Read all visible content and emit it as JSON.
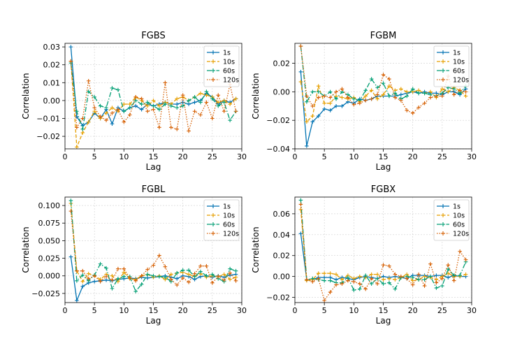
{
  "chart_data": [
    {
      "type": "line",
      "title": "FGBS",
      "xlabel": "Lag",
      "ylabel": "Correlation",
      "xlim": [
        0,
        30
      ],
      "ylim": [
        -0.027,
        0.032
      ],
      "xticks": [
        0,
        5,
        10,
        15,
        20,
        25,
        30
      ],
      "yticks": [
        -0.02,
        -0.01,
        0.0,
        0.01,
        0.02,
        0.03
      ],
      "ytick_labels": [
        "−0.02",
        "−0.01",
        "0.00",
        "0.01",
        "0.02",
        "0.03"
      ],
      "grid": true,
      "legend_position": "top-right",
      "x": [
        1,
        2,
        3,
        4,
        5,
        6,
        7,
        8,
        9,
        10,
        11,
        12,
        13,
        14,
        15,
        16,
        17,
        18,
        19,
        20,
        21,
        22,
        23,
        24,
        25,
        26,
        27,
        28,
        29
      ],
      "series": [
        {
          "name": "1s",
          "color": "#0072B2",
          "linestyle": "solid",
          "values": [
            0.03,
            -0.009,
            -0.014,
            -0.012,
            -0.007,
            -0.01,
            -0.005,
            -0.013,
            -0.004,
            -0.006,
            -0.004,
            -0.003,
            -0.005,
            -0.002,
            -0.003,
            -0.002,
            -0.001,
            -0.002,
            -0.002,
            -0.001,
            -0.002,
            -0.001,
            0.0,
            0.004,
            0.002,
            -0.002,
            0.0,
            -0.001,
            0.001
          ]
        },
        {
          "name": "10s",
          "color": "#E69F00",
          "linestyle": "dashed",
          "values": [
            0.022,
            -0.026,
            -0.018,
            -0.012,
            -0.006,
            -0.01,
            -0.007,
            -0.004,
            -0.006,
            -0.002,
            -0.002,
            0.002,
            0.0,
            -0.003,
            0.0,
            -0.003,
            -0.001,
            -0.002,
            0.001,
            0.002,
            0.0,
            0.002,
            0.004,
            0.003,
            0.002,
            -0.001,
            0.0,
            -0.002,
            0.001
          ]
        },
        {
          "name": "60s",
          "color": "#009E73",
          "linestyle": "dashdot",
          "values": [
            0.021,
            -0.006,
            -0.016,
            0.005,
            0.002,
            -0.003,
            -0.004,
            0.007,
            0.006,
            -0.006,
            -0.004,
            0.0,
            -0.002,
            -0.001,
            -0.003,
            -0.005,
            -0.002,
            -0.003,
            -0.004,
            -0.003,
            0.0,
            0.002,
            -0.001,
            0.005,
            0.001,
            -0.003,
            -0.001,
            -0.011,
            -0.006
          ]
        },
        {
          "name": "120s",
          "color": "#D55E00",
          "linestyle": "dotted",
          "values": [
            0.022,
            -0.015,
            -0.01,
            0.011,
            -0.004,
            -0.009,
            -0.011,
            -0.007,
            -0.005,
            -0.012,
            -0.008,
            0.002,
            0.001,
            -0.006,
            -0.005,
            -0.015,
            0.01,
            -0.015,
            -0.016,
            0.003,
            -0.017,
            -0.006,
            -0.008,
            -0.001,
            -0.01,
            0.003,
            -0.006,
            0.009,
            -0.006
          ]
        }
      ]
    },
    {
      "type": "line",
      "title": "FGBM",
      "xlabel": "Lag",
      "ylabel": "Correlation",
      "xlim": [
        0,
        30
      ],
      "ylim": [
        -0.04,
        0.034
      ],
      "xticks": [
        0,
        5,
        10,
        15,
        20,
        25,
        30
      ],
      "yticks": [
        -0.04,
        -0.02,
        0.0,
        0.02
      ],
      "ytick_labels": [
        "−0.04",
        "−0.02",
        "0.00",
        "0.02"
      ],
      "grid": true,
      "legend_position": "top-right",
      "x": [
        1,
        2,
        3,
        4,
        5,
        6,
        7,
        8,
        9,
        10,
        11,
        12,
        13,
        14,
        15,
        16,
        17,
        18,
        19,
        20,
        21,
        22,
        23,
        24,
        25,
        26,
        27,
        28,
        29
      ],
      "series": [
        {
          "name": "1s",
          "color": "#0072B2",
          "linestyle": "solid",
          "values": [
            0.014,
            -0.038,
            -0.021,
            -0.017,
            -0.012,
            -0.013,
            -0.01,
            -0.01,
            -0.007,
            -0.008,
            -0.005,
            -0.006,
            -0.005,
            -0.003,
            -0.003,
            -0.003,
            -0.003,
            -0.002,
            -0.001,
            0.0,
            -0.001,
            0.0,
            -0.001,
            -0.001,
            -0.002,
            0.0,
            0.0,
            -0.002,
            0.002
          ]
        },
        {
          "name": "10s",
          "color": "#E69F00",
          "linestyle": "dashed",
          "values": [
            0.007,
            -0.021,
            -0.017,
            0.004,
            -0.008,
            -0.008,
            -0.003,
            -0.004,
            -0.005,
            -0.004,
            -0.007,
            -0.003,
            0.001,
            -0.005,
            -0.002,
            0.004,
            0.001,
            0.002,
            0.0,
            0.0,
            0.001,
            -0.001,
            0.0,
            -0.004,
            0.002,
            0.0,
            0.003,
            0.001,
            -0.003
          ]
        },
        {
          "name": "60s",
          "color": "#009E73",
          "linestyle": "dashdot",
          "values": [
            0.032,
            -0.007,
            0.0,
            0.0,
            -0.003,
            0.0,
            -0.005,
            0.0,
            -0.002,
            -0.005,
            -0.006,
            0.001,
            0.009,
            0.003,
            0.006,
            -0.003,
            -0.001,
            -0.005,
            -0.003,
            0.002,
            -0.001,
            -0.001,
            -0.002,
            -0.003,
            -0.001,
            0.003,
            0.002,
            -0.001,
            0.004
          ]
        },
        {
          "name": "120s",
          "color": "#D55E00",
          "linestyle": "dotted",
          "values": [
            0.032,
            -0.003,
            -0.01,
            -0.004,
            -0.003,
            -0.004,
            0.0,
            0.002,
            -0.004,
            -0.009,
            -0.008,
            -0.006,
            -0.005,
            -0.002,
            0.012,
            0.009,
            -0.004,
            -0.006,
            -0.013,
            -0.015,
            -0.011,
            -0.008,
            -0.004,
            -0.003,
            -0.003,
            0.011,
            -0.002,
            0.001,
            0.0
          ]
        }
      ]
    },
    {
      "type": "line",
      "title": "FGBL",
      "xlabel": "Lag",
      "ylabel": "Correlation",
      "xlim": [
        0,
        30
      ],
      "ylim": [
        -0.038,
        0.112
      ],
      "xticks": [
        0,
        5,
        10,
        15,
        20,
        25,
        30
      ],
      "yticks": [
        -0.025,
        0.0,
        0.025,
        0.05,
        0.075,
        0.1
      ],
      "ytick_labels": [
        "−0.025",
        "0.000",
        "0.025",
        "0.050",
        "0.075",
        "0.100"
      ],
      "grid": true,
      "legend_position": "top-right",
      "x": [
        1,
        2,
        3,
        4,
        5,
        6,
        7,
        8,
        9,
        10,
        11,
        12,
        13,
        14,
        15,
        16,
        17,
        18,
        19,
        20,
        21,
        22,
        23,
        24,
        25,
        26,
        27,
        28,
        29
      ],
      "series": [
        {
          "name": "1s",
          "color": "#0072B2",
          "linestyle": "solid",
          "values": [
            0.027,
            -0.035,
            -0.015,
            -0.01,
            -0.008,
            -0.007,
            -0.006,
            -0.007,
            -0.005,
            -0.004,
            -0.003,
            -0.004,
            -0.002,
            -0.003,
            -0.002,
            -0.001,
            0.0,
            -0.002,
            -0.004,
            0.0,
            -0.001,
            -0.005,
            -0.001,
            0.0,
            -0.002,
            0.0,
            -0.002,
            0.001,
            0.002
          ]
        },
        {
          "name": "10s",
          "color": "#E69F00",
          "linestyle": "dashed",
          "values": [
            0.103,
            0.007,
            -0.008,
            0.003,
            0.0,
            -0.005,
            0.002,
            0.0,
            -0.008,
            0.005,
            -0.004,
            -0.005,
            0.0,
            0.002,
            -0.002,
            0.0,
            -0.005,
            0.002,
            0.004,
            0.005,
            0.002,
            -0.001,
            0.003,
            -0.002,
            0.0,
            -0.001,
            0.002,
            -0.005,
            -0.002
          ]
        },
        {
          "name": "60s",
          "color": "#009E73",
          "linestyle": "dashdot",
          "values": [
            0.107,
            -0.007,
            0.001,
            -0.007,
            0.001,
            0.017,
            0.011,
            -0.018,
            -0.004,
            -0.001,
            -0.001,
            -0.022,
            -0.012,
            0.002,
            0.0,
            -0.001,
            -0.002,
            -0.008,
            0.004,
            0.008,
            0.008,
            -0.001,
            0.006,
            0.0,
            0.002,
            -0.004,
            -0.008,
            0.01,
            0.007
          ]
        },
        {
          "name": "120s",
          "color": "#D55E00",
          "linestyle": "dotted",
          "values": [
            0.092,
            0.007,
            0.007,
            -0.004,
            0.0,
            -0.008,
            -0.001,
            -0.006,
            0.01,
            0.01,
            -0.003,
            -0.007,
            0.0,
            0.009,
            0.015,
            0.029,
            0.013,
            -0.005,
            -0.013,
            -0.003,
            -0.009,
            0.003,
            0.014,
            0.014,
            -0.01,
            -0.001,
            -0.006,
            0.004,
            -0.007
          ]
        }
      ]
    },
    {
      "type": "line",
      "title": "FGBX",
      "xlabel": "Lag",
      "ylabel": "Correlation",
      "xlim": [
        0,
        30
      ],
      "ylim": [
        -0.025,
        0.076
      ],
      "xticks": [
        0,
        5,
        10,
        15,
        20,
        25,
        30
      ],
      "yticks": [
        -0.02,
        0.0,
        0.02,
        0.04,
        0.06
      ],
      "ytick_labels": [
        "−0.02",
        "0.00",
        "0.02",
        "0.04",
        "0.06"
      ],
      "grid": true,
      "legend_position": "top-right",
      "x": [
        1,
        2,
        3,
        4,
        5,
        6,
        7,
        8,
        9,
        10,
        11,
        12,
        13,
        14,
        15,
        16,
        17,
        18,
        19,
        20,
        21,
        22,
        23,
        24,
        25,
        26,
        27,
        28,
        29
      ],
      "series": [
        {
          "name": "1s",
          "color": "#0072B2",
          "linestyle": "solid",
          "values": [
            0.041,
            -0.003,
            -0.003,
            -0.001,
            -0.001,
            -0.001,
            -0.003,
            -0.001,
            -0.002,
            -0.003,
            -0.001,
            0.0,
            -0.001,
            -0.002,
            0.0,
            -0.001,
            0.0,
            -0.001,
            -0.002,
            0.001,
            0.001,
            0.001,
            0.0,
            0.001,
            0.001,
            -0.001,
            0.001,
            0.0,
            0.0
          ]
        },
        {
          "name": "10s",
          "color": "#E69F00",
          "linestyle": "dashed",
          "values": [
            0.064,
            -0.004,
            -0.003,
            0.003,
            0.003,
            0.003,
            0.002,
            -0.003,
            0.001,
            -0.002,
            0.0,
            -0.001,
            0.002,
            0.002,
            -0.003,
            -0.002,
            -0.003,
            -0.001,
            0.002,
            -0.004,
            -0.003,
            0.0,
            -0.001,
            -0.003,
            0.0,
            0.003,
            0.0,
            0.0,
            0.002
          ]
        },
        {
          "name": "60s",
          "color": "#009E73",
          "linestyle": "dashdot",
          "values": [
            0.073,
            -0.003,
            -0.002,
            -0.003,
            -0.004,
            -0.004,
            -0.006,
            -0.006,
            -0.001,
            -0.013,
            -0.012,
            0.001,
            -0.007,
            -0.002,
            -0.007,
            -0.006,
            -0.012,
            -0.001,
            0.0,
            -0.001,
            -0.003,
            -0.003,
            0.0,
            -0.011,
            -0.009,
            0.007,
            0.001,
            0.001,
            0.014
          ]
        },
        {
          "name": "120s",
          "color": "#D55E00",
          "linestyle": "dotted",
          "values": [
            0.069,
            -0.003,
            -0.005,
            -0.002,
            -0.023,
            -0.015,
            -0.008,
            -0.007,
            -0.004,
            -0.005,
            -0.007,
            -0.012,
            -0.002,
            -0.007,
            0.011,
            0.01,
            0.002,
            0.0,
            -0.002,
            -0.008,
            0.002,
            -0.009,
            0.012,
            -0.006,
            -0.002,
            0.011,
            -0.004,
            0.024,
            0.016
          ]
        }
      ]
    }
  ]
}
